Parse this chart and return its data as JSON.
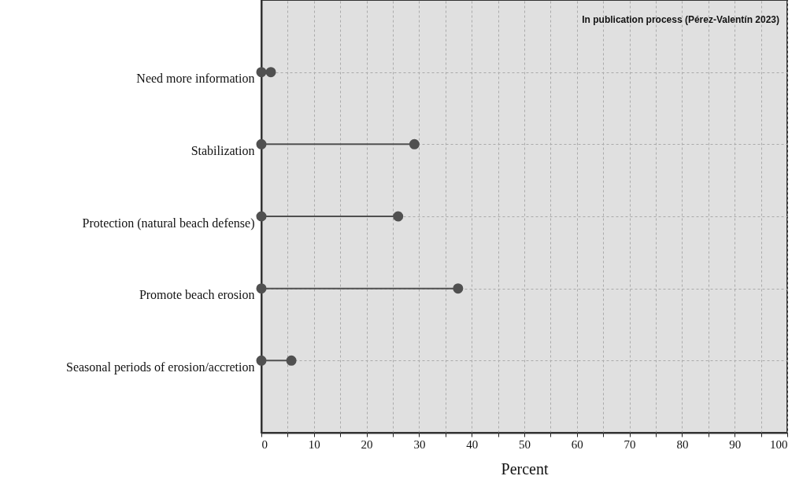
{
  "chart_data": {
    "type": "lollipop",
    "orientation": "horizontal",
    "categories": [
      "Need more information",
      "Stabilization",
      "Protection (natural beach defense)",
      "Promote beach erosion",
      "Seasonal periods of erosion/accretion"
    ],
    "series": [
      {
        "color": "#505050",
        "values": [
          1.8,
          29.1,
          26.0,
          37.4,
          5.7
        ]
      },
      {
        "type": "scatter",
        "color": "#505050",
        "values": [
          0,
          0,
          0,
          0,
          0
        ]
      }
    ],
    "xlabel": "Percent",
    "xlim": [
      0,
      100
    ],
    "xticks": [
      0,
      {
        "value": 5,
        "label": null
      },
      10,
      {
        "value": 15,
        "label": null
      },
      20,
      {
        "value": 25,
        "label": null
      },
      30,
      {
        "value": 35,
        "label": null
      },
      40,
      {
        "value": 45,
        "label": null
      },
      50,
      {
        "value": 55,
        "label": null
      },
      60,
      {
        "value": 65,
        "label": null
      },
      70,
      {
        "value": 75,
        "label": null
      },
      80,
      {
        "value": 85,
        "label": null
      },
      90,
      {
        "value": 95,
        "label": null
      },
      100
    ],
    "grid": true,
    "marker": "circle",
    "annotations": [
      "In publication process (Pérez-Valentín 2023)"
    ]
  }
}
